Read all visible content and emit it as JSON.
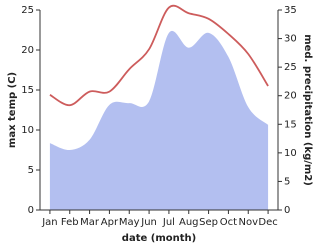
{
  "chart_data": {
    "type": "line-area",
    "x_label": "date (month)",
    "y_label": "max temp (C)",
    "y2_label": "med. precipitation (kg/m2)",
    "categories": [
      "Jan",
      "Feb",
      "Mar",
      "Apr",
      "May",
      "Jun",
      "Jul",
      "Aug",
      "Sep",
      "Oct",
      "Nov",
      "Dec"
    ],
    "series": [
      {
        "name": "med. precipitation",
        "type": "area",
        "axis": "y2",
        "color": "#b3bff0",
        "values": [
          11.7,
          10.5,
          12.3,
          18.4,
          18.7,
          19.0,
          31.0,
          28.4,
          31.0,
          26.8,
          18.0,
          14.9
        ]
      },
      {
        "name": "max temp",
        "type": "line",
        "color": "#cd5c5c",
        "values": [
          14.4,
          13.1,
          14.8,
          14.8,
          17.6,
          20.1,
          25.3,
          24.6,
          23.9,
          22.0,
          19.5,
          15.5
        ]
      }
    ],
    "ylim": [
      0,
      25
    ],
    "yticks": [
      0,
      5,
      10,
      15,
      20,
      25
    ],
    "y2lim": [
      0,
      35
    ],
    "y2ticks": [
      0,
      5,
      10,
      15,
      20,
      25,
      30,
      35
    ]
  }
}
